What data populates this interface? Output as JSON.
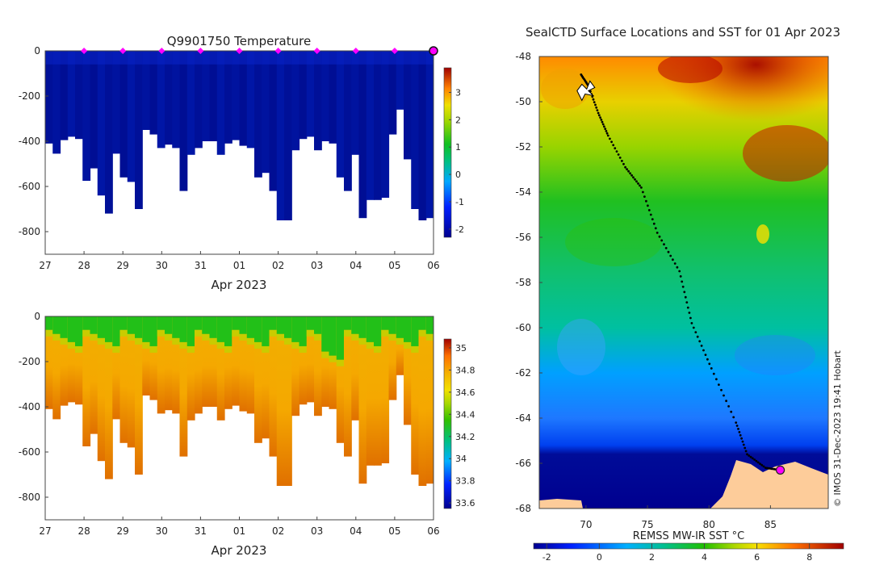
{
  "chart_data": [
    {
      "type": "heatmap",
      "title": "Q9901750  Temperature",
      "xlabel": "Apr 2023",
      "ylabel": "",
      "x_ticks": [
        "27",
        "28",
        "29",
        "30",
        "31",
        "01",
        "02",
        "03",
        "04",
        "05",
        "06"
      ],
      "y_ticks": [
        0,
        -200,
        -400,
        -600,
        -800
      ],
      "ylim": [
        -900,
        0
      ],
      "marker_days": [
        "28",
        "29",
        "30",
        "31",
        "01",
        "02",
        "03",
        "04",
        "05"
      ],
      "colorbar": {
        "ticks": [
          3,
          2,
          1,
          0,
          -1,
          -2
        ],
        "range": [
          -2.3,
          3.9
        ],
        "label": ""
      },
      "profile_max_depth_m": [
        -410,
        -455,
        -395,
        -380,
        -390,
        -575,
        -520,
        -640,
        -720,
        -455,
        -560,
        -580,
        -700,
        -350,
        -370,
        -430,
        -415,
        -430,
        -620,
        -460,
        -430,
        -400,
        -400,
        -460,
        -410,
        -395,
        -420,
        -430,
        -560,
        -540,
        -620,
        -750,
        -750,
        -440,
        -390,
        -380,
        -440,
        -400,
        -410,
        -560,
        -620,
        -460,
        -740,
        -660,
        -660,
        -650,
        -370,
        -260,
        -480,
        -700,
        -750,
        -740
      ]
    },
    {
      "type": "heatmap",
      "title": "",
      "xlabel": "Apr 2023",
      "ylabel": "",
      "x_ticks": [
        "27",
        "28",
        "29",
        "30",
        "31",
        "01",
        "02",
        "03",
        "04",
        "05",
        "06"
      ],
      "y_ticks": [
        0,
        -200,
        -400,
        -600,
        -800
      ],
      "ylim": [
        -900,
        0
      ],
      "colorbar": {
        "ticks": [
          35,
          34.8,
          34.6,
          34.4,
          34.2,
          34,
          33.8,
          33.6
        ],
        "range": [
          33.55,
          35.08
        ],
        "label": ""
      },
      "profile_max_depth_m": [
        -410,
        -455,
        -395,
        -380,
        -390,
        -575,
        -520,
        -640,
        -720,
        -455,
        -560,
        -580,
        -700,
        -350,
        -370,
        -430,
        -415,
        -430,
        -620,
        -460,
        -430,
        -400,
        -400,
        -460,
        -410,
        -395,
        -420,
        -430,
        -560,
        -540,
        -620,
        -750,
        -750,
        -440,
        -390,
        -380,
        -440,
        -400,
        -410,
        -560,
        -620,
        -460,
        -740,
        -660,
        -660,
        -650,
        -370,
        -260,
        -480,
        -700,
        -750,
        -740
      ]
    },
    {
      "type": "heatmap",
      "title": "SealCTD Surface Locations and SST for 01 Apr 2023",
      "xlabel": "",
      "ylabel": "",
      "x_ticks": [
        70,
        75,
        80,
        85
      ],
      "y_ticks": [
        -48,
        -50,
        -52,
        -54,
        -56,
        -58,
        -60,
        -62,
        -64,
        -66,
        -68
      ],
      "xlim": [
        66.2,
        89.7
      ],
      "ylim": [
        -68,
        -48
      ],
      "colorbar": {
        "label": "REMSS MW-IR SST °C",
        "ticks": [
          -2,
          0,
          2,
          4,
          6,
          8
        ],
        "range": [
          -2.5,
          9.3
        ]
      },
      "track": {
        "path": [
          [
            69.6,
            -48.8
          ],
          [
            70.2,
            -49.3
          ],
          [
            71.0,
            -50.5
          ],
          [
            71.8,
            -51.5
          ],
          [
            73.2,
            -52.9
          ],
          [
            74.5,
            -53.8
          ],
          [
            75.8,
            -55.8
          ],
          [
            77.6,
            -57.5
          ],
          [
            78.6,
            -59.8
          ],
          [
            80.2,
            -61.8
          ],
          [
            82.2,
            -64.2
          ],
          [
            83.1,
            -65.6
          ],
          [
            84.6,
            -66.2
          ],
          [
            85.8,
            -66.3
          ]
        ],
        "current_position": [
          85.8,
          -66.3
        ]
      }
    }
  ],
  "watermark": "© IMOS 31-Dec-2023 19:41 Hobart"
}
